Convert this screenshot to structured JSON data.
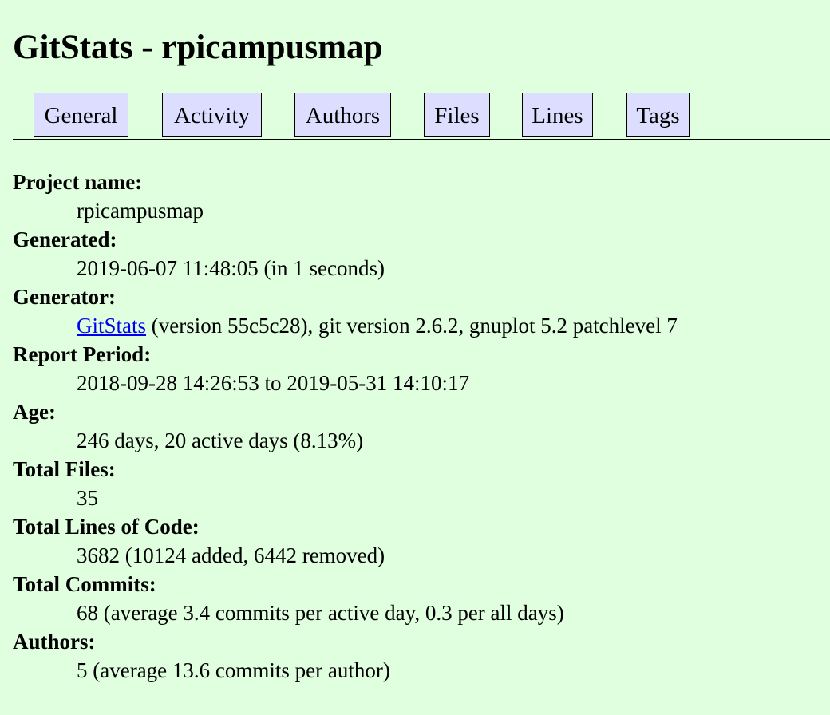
{
  "page": {
    "title": "GitStats - rpicampusmap"
  },
  "nav": {
    "tabs": [
      {
        "label": "General"
      },
      {
        "label": "Activity"
      },
      {
        "label": "Authors"
      },
      {
        "label": "Files"
      },
      {
        "label": "Lines"
      },
      {
        "label": "Tags"
      }
    ]
  },
  "info": {
    "project_name": {
      "label": "Project name:",
      "value": "rpicampusmap"
    },
    "generated": {
      "label": "Generated:",
      "value": "2019-06-07 11:48:05 (in 1 seconds)"
    },
    "generator": {
      "label": "Generator:",
      "link_text": "GitStats",
      "value_rest": " (version 55c5c28), git version 2.6.2, gnuplot 5.2 patchlevel 7"
    },
    "report_period": {
      "label": "Report Period:",
      "value": "2018-09-28 14:26:53 to 2019-05-31 14:10:17"
    },
    "age": {
      "label": "Age:",
      "value": "246 days, 20 active days (8.13%)"
    },
    "total_files": {
      "label": "Total Files:",
      "value": "35"
    },
    "total_lines": {
      "label": "Total Lines of Code:",
      "value": "3682 (10124 added, 6442 removed)"
    },
    "total_commits": {
      "label": "Total Commits:",
      "value": "68 (average 3.4 commits per active day, 0.3 per all days)"
    },
    "authors": {
      "label": "Authors:",
      "value": "5 (average 13.6 commits per author)"
    }
  }
}
